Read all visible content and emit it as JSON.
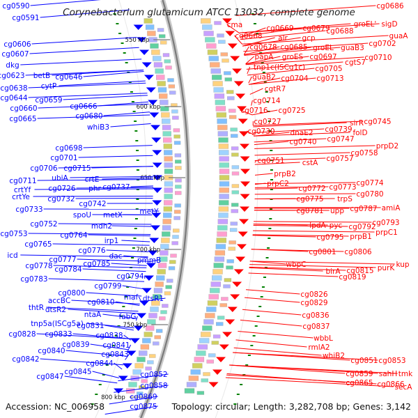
{
  "title": "Corynebacterium glutamicum ATCC 13032, complete genome",
  "footer": {
    "accession": "Accession: NC_006958",
    "topology": "Topology: circular; Length: 3,282,708 bp; Genes: 3,142"
  },
  "colors": {
    "plus_strand": "#ff0000",
    "minus_strand": "#0000ff",
    "kbp_tick": "#008000"
  },
  "kbp_marks": [
    "550 kbp",
    "600 kbp",
    "650 kbp",
    "700 kbp",
    "750 kbp",
    "800 kbp"
  ],
  "left_labels": [
    [
      "cg0590",
      23,
      12
    ],
    [
      "cg0591",
      37,
      29
    ],
    [
      "cg0606",
      25,
      67
    ],
    [
      "cg0607",
      22,
      81
    ],
    [
      "dkg",
      18,
      97
    ],
    [
      "cg0623",
      16,
      112
    ],
    [
      "betB",
      60,
      112
    ],
    [
      "cytP",
      70,
      127
    ],
    [
      "cg0646",
      99,
      114
    ],
    [
      "cg0638",
      20,
      130
    ],
    [
      "cg0644",
      20,
      144
    ],
    [
      "cg0659",
      70,
      147
    ],
    [
      "cg0666",
      120,
      156
    ],
    [
      "cg0660",
      34,
      159
    ],
    [
      "cg0680",
      128,
      170
    ],
    [
      "cg0665",
      33,
      174
    ],
    [
      "whiB3",
      141,
      186
    ],
    [
      "cg0698",
      99,
      216
    ],
    [
      "cg0701",
      92,
      230
    ],
    [
      "cg0706",
      63,
      245
    ],
    [
      "cg0715",
      111,
      245
    ],
    [
      "crtE",
      132,
      261
    ],
    [
      "cg0711",
      33,
      263
    ],
    [
      "ubiA",
      86,
      259
    ],
    [
      "cg0737",
      167,
      272
    ],
    [
      "crtYf",
      32,
      276
    ],
    [
      "cg0726",
      89,
      274
    ],
    [
      "phr",
      136,
      274
    ],
    [
      "crtYe",
      30,
      286
    ],
    [
      "cg0732",
      88,
      289
    ],
    [
      "cg0742",
      133,
      296
    ],
    [
      "cg0733",
      42,
      304
    ],
    [
      "spoU",
      118,
      312
    ],
    [
      "metX",
      162,
      312
    ],
    [
      "metY",
      214,
      307
    ],
    [
      "cg0752",
      63,
      325
    ],
    [
      "mdh2",
      146,
      328
    ],
    [
      "cg0753",
      20,
      339
    ],
    [
      "cg0764",
      106,
      341
    ],
    [
      "irp1",
      160,
      349
    ],
    [
      "cg0765",
      55,
      354
    ],
    [
      "cg0776",
      132,
      363
    ],
    [
      "icd",
      18,
      370
    ],
    [
      "cg0777",
      90,
      376
    ],
    [
      "dac",
      166,
      371
    ],
    [
      "pmmB",
      214,
      377
    ],
    [
      "cg0778",
      56,
      385
    ],
    [
      "cg0784",
      98,
      390
    ],
    [
      "cg0785",
      139,
      382
    ],
    [
      "cg0783",
      49,
      404
    ],
    [
      "cg0794",
      187,
      400
    ],
    [
      "cg0799",
      155,
      414
    ],
    [
      "cg0800",
      103,
      424
    ],
    [
      "accBC",
      85,
      435
    ],
    [
      "cg0810",
      145,
      437
    ],
    [
      "maf",
      188,
      430
    ],
    [
      "dtsR1",
      220,
      432
    ],
    [
      "thtR",
      52,
      445
    ],
    [
      "dtsR2",
      80,
      448
    ],
    [
      "ntaA",
      133,
      455
    ],
    [
      "fabG",
      183,
      458
    ],
    [
      "tnp5a(ISCg5a)",
      82,
      468
    ],
    [
      "cg0831",
      130,
      471
    ],
    [
      "cg0828",
      32,
      483
    ],
    [
      "cg0833",
      84,
      483
    ],
    [
      "cg0838",
      157,
      485
    ],
    [
      "cg0839",
      109,
      498
    ],
    [
      "cg0841",
      167,
      499
    ],
    [
      "cg0840",
      74,
      507
    ],
    [
      "cg0843",
      165,
      512
    ],
    [
      "cg0842",
      37,
      519
    ],
    [
      "cg0844",
      143,
      525
    ],
    [
      "cg0845",
      112,
      537
    ],
    [
      "cg0847",
      72,
      544
    ],
    [
      "cg0852",
      221,
      541
    ],
    [
      "cg0858",
      221,
      557
    ],
    [
      "cg0869",
      206,
      573
    ],
    [
      "cg0875",
      206,
      587
    ]
  ],
  "right_labels": [
    [
      "cg0686",
      560,
      12
    ],
    [
      "cma",
      337,
      39
    ],
    [
      "cg0669",
      402,
      44
    ],
    [
      "cg0679",
      454,
      44
    ],
    [
      "sigD",
      559,
      38
    ],
    [
      "groEL'",
      524,
      38
    ],
    [
      "alr",
      406,
      58
    ],
    [
      "cg0668",
      357,
      55
    ],
    [
      "gcp",
      443,
      58
    ],
    [
      "cg0688",
      488,
      48
    ],
    [
      "guaA",
      572,
      55
    ],
    [
      "cg0678",
      378,
      71
    ],
    [
      "cg0685",
      422,
      71
    ],
    [
      "groEL",
      464,
      72
    ],
    [
      "guaB3",
      506,
      72
    ],
    [
      "cg0702",
      549,
      66
    ],
    [
      "papA",
      379,
      85
    ],
    [
      "groES",
      420,
      85
    ],
    [
      "cg0697",
      464,
      85
    ],
    [
      "cg0710",
      543,
      86
    ],
    [
      "tnp1c(ISCg1c)",
      401,
      100
    ],
    [
      "cgtS7",
      510,
      93
    ],
    [
      "cg0705",
      472,
      102
    ],
    [
      "guaB2",
      379,
      114
    ],
    [
      "cg0704",
      423,
      116
    ],
    [
      "cg0713",
      474,
      116
    ],
    [
      "cgtR7",
      395,
      131
    ],
    [
      "cg0714",
      383,
      148
    ],
    [
      "cg0716",
      365,
      162
    ],
    [
      "cg0725",
      419,
      162
    ],
    [
      "cg0727",
      384,
      178
    ],
    [
      "cg0745",
      542,
      178
    ],
    [
      "sirR",
      512,
      180
    ],
    [
      "cg0730",
      375,
      192
    ],
    [
      "dnaE2",
      433,
      194
    ],
    [
      "cg0739",
      486,
      189
    ],
    [
      "folD",
      517,
      194
    ],
    [
      "cg0740",
      435,
      207
    ],
    [
      "cg0747",
      489,
      203
    ],
    [
      "prpD2",
      556,
      213
    ],
    [
      "cg0758",
      523,
      223
    ],
    [
      "cg0751",
      389,
      234
    ],
    [
      "cstA",
      445,
      237
    ],
    [
      "cg0757",
      488,
      231
    ],
    [
      "prpB2",
      409,
      253
    ],
    [
      "cg0774",
      531,
      266
    ],
    [
      "prpC2",
      399,
      267
    ],
    [
      "cg0772",
      448,
      274
    ],
    [
      "cg0773",
      492,
      272
    ],
    [
      "cg0780",
      531,
      282
    ],
    [
      "cg0775",
      445,
      289
    ],
    [
      "trpS",
      495,
      289
    ],
    [
      "cg0787",
      522,
      303
    ],
    [
      "amiA",
      561,
      302
    ],
    [
      "cg0781",
      445,
      306
    ],
    [
      "upp",
      484,
      306
    ],
    [
      "cg0793",
      554,
      323
    ],
    [
      "lpdA",
      456,
      327
    ],
    [
      "pyc",
      482,
      327
    ],
    [
      "cg0792",
      520,
      329
    ],
    [
      "prpC1",
      555,
      337
    ],
    [
      "cg0795",
      474,
      344
    ],
    [
      "prpB1",
      518,
      343
    ],
    [
      "cg0801",
      463,
      365
    ],
    [
      "cg0806",
      514,
      365
    ],
    [
      "wbpC",
      425,
      383
    ],
    [
      "birA",
      478,
      393
    ],
    [
      "cg0815",
      517,
      392
    ],
    [
      "purK",
      554,
      388
    ],
    [
      "kup",
      578,
      383
    ],
    [
      "cg0819",
      506,
      401
    ],
    [
      "cg0826",
      451,
      426
    ],
    [
      "cg0829",
      451,
      438
    ],
    [
      "cg0836",
      453,
      456
    ],
    [
      "cg0837",
      454,
      472
    ],
    [
      "wbbL",
      464,
      489
    ],
    [
      "rmlA2",
      458,
      502
    ],
    [
      "whiB2",
      479,
      514
    ],
    [
      "cg0851",
      523,
      521
    ],
    [
      "cg0853",
      563,
      521
    ],
    [
      "cg0859",
      516,
      540
    ],
    [
      "sahH",
      557,
      540
    ],
    [
      "tmk",
      582,
      540
    ],
    [
      "cg0865",
      516,
      553
    ],
    [
      "cg0866",
      561,
      555
    ],
    [
      "secA",
      579,
      559
    ]
  ]
}
